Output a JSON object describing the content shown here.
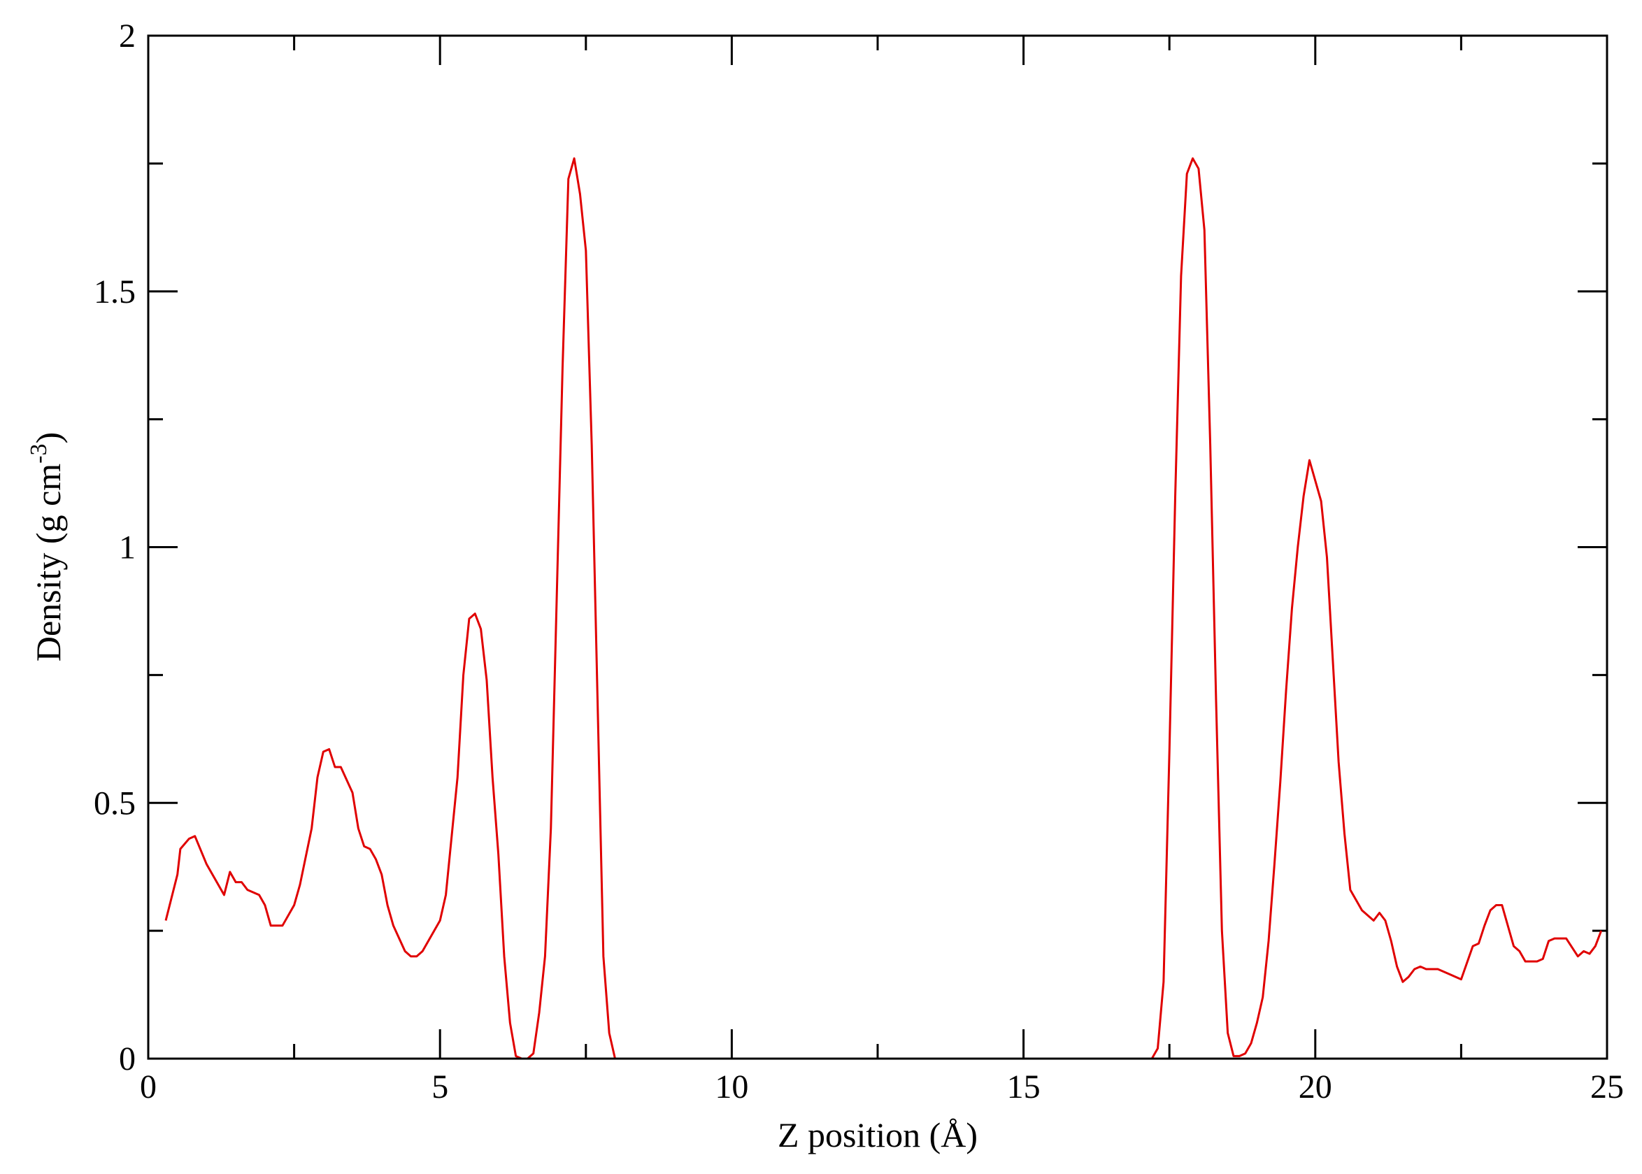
{
  "chart_data": {
    "type": "line",
    "xlabel": "Z position (Å)",
    "ylabel": {
      "text": "Density (g cm",
      "superscript": "-3",
      "suffix": ")"
    },
    "color": "#e00000",
    "xlim": [
      0,
      25
    ],
    "ylim": [
      0,
      2
    ],
    "xticks": [
      0,
      5,
      10,
      15,
      20,
      25
    ],
    "yticks": [
      0,
      0.5,
      1,
      1.5,
      2
    ],
    "xminorticks": [
      2.5,
      7.5,
      12.5,
      17.5,
      22.5
    ],
    "yminorticks": [
      0.25,
      0.75,
      1.25,
      1.75
    ],
    "x": [
      0.3,
      0.5,
      0.55,
      0.7,
      0.8,
      1.0,
      1.2,
      1.3,
      1.4,
      1.5,
      1.6,
      1.7,
      1.9,
      2.0,
      2.1,
      2.3,
      2.5,
      2.6,
      2.8,
      2.9,
      3.0,
      3.1,
      3.2,
      3.3,
      3.5,
      3.6,
      3.7,
      3.8,
      3.9,
      4.0,
      4.1,
      4.2,
      4.4,
      4.5,
      4.6,
      4.7,
      4.8,
      5.0,
      5.1,
      5.3,
      5.4,
      5.5,
      5.6,
      5.7,
      5.8,
      5.9,
      6.0,
      6.1,
      6.2,
      6.3,
      6.4,
      6.5,
      6.6,
      6.7,
      6.8,
      6.9,
      7.0,
      7.1,
      7.2,
      7.3,
      7.4,
      7.5,
      7.6,
      7.7,
      7.8,
      7.9,
      8.0,
      17.2,
      17.3,
      17.4,
      17.5,
      17.6,
      17.7,
      17.8,
      17.9,
      18.0,
      18.1,
      18.2,
      18.3,
      18.4,
      18.5,
      18.6,
      18.7,
      18.8,
      18.9,
      19.0,
      19.1,
      19.2,
      19.3,
      19.4,
      19.5,
      19.6,
      19.7,
      19.8,
      19.9,
      20.0,
      20.1,
      20.2,
      20.3,
      20.4,
      20.5,
      20.6,
      20.7,
      20.8,
      21.0,
      21.1,
      21.2,
      21.3,
      21.4,
      21.5,
      21.6,
      21.7,
      21.8,
      21.9,
      22.1,
      22.3,
      22.5,
      22.7,
      22.8,
      22.9,
      23.0,
      23.1,
      23.2,
      23.4,
      23.5,
      23.6,
      23.8,
      23.9,
      24.0,
      24.1,
      24.3,
      24.5,
      24.6,
      24.7,
      24.8,
      24.9
    ],
    "values": [
      0.27,
      0.36,
      0.41,
      0.43,
      0.435,
      0.38,
      0.34,
      0.32,
      0.365,
      0.345,
      0.345,
      0.33,
      0.32,
      0.3,
      0.26,
      0.26,
      0.3,
      0.34,
      0.45,
      0.55,
      0.6,
      0.605,
      0.57,
      0.57,
      0.52,
      0.45,
      0.415,
      0.41,
      0.39,
      0.36,
      0.3,
      0.26,
      0.21,
      0.2,
      0.2,
      0.21,
      0.23,
      0.27,
      0.32,
      0.55,
      0.75,
      0.86,
      0.87,
      0.84,
      0.74,
      0.55,
      0.4,
      0.2,
      0.07,
      0.005,
      0,
      0,
      0.01,
      0.09,
      0.2,
      0.45,
      0.9,
      1.35,
      1.72,
      1.76,
      1.69,
      1.58,
      1.2,
      0.7,
      0.2,
      0.05,
      0,
      0,
      0.02,
      0.15,
      0.6,
      1.1,
      1.53,
      1.73,
      1.76,
      1.74,
      1.62,
      1.2,
      0.7,
      0.25,
      0.05,
      0.005,
      0.005,
      0.01,
      0.03,
      0.07,
      0.12,
      0.23,
      0.38,
      0.54,
      0.72,
      0.88,
      1.0,
      1.1,
      1.17,
      1.13,
      1.09,
      0.98,
      0.78,
      0.58,
      0.44,
      0.33,
      0.31,
      0.29,
      0.27,
      0.285,
      0.27,
      0.23,
      0.18,
      0.15,
      0.16,
      0.175,
      0.18,
      0.175,
      0.175,
      0.165,
      0.155,
      0.22,
      0.225,
      0.26,
      0.29,
      0.3,
      0.3,
      0.22,
      0.21,
      0.19,
      0.19,
      0.195,
      0.23,
      0.235,
      0.235,
      0.2,
      0.21,
      0.205,
      0.22,
      0.25
    ]
  }
}
